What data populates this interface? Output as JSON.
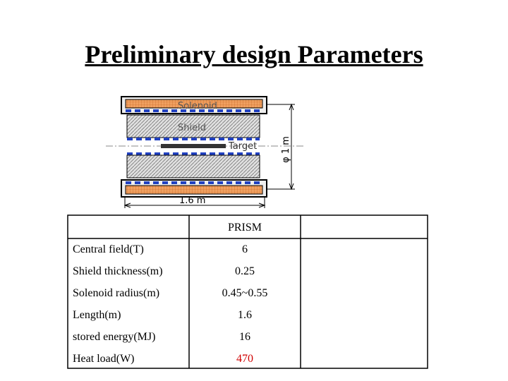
{
  "title": "Preliminary design Parameters",
  "diagram": {
    "solenoid": "Solenoid",
    "shield": "Shield",
    "target": "Target",
    "diameter": "φ 1 m",
    "length": "1.6 m"
  },
  "table": {
    "header": "PRISM",
    "rows": [
      [
        "Central field(T)",
        "6"
      ],
      [
        "Shield thickness(m)",
        "0.25"
      ],
      [
        "Solenoid radius(m)",
        "0.45~0.55"
      ],
      [
        "Length(m)",
        "1.6"
      ],
      [
        "stored energy(MJ)",
        "16"
      ],
      [
        "Heat load(W)",
        "470"
      ]
    ]
  }
}
